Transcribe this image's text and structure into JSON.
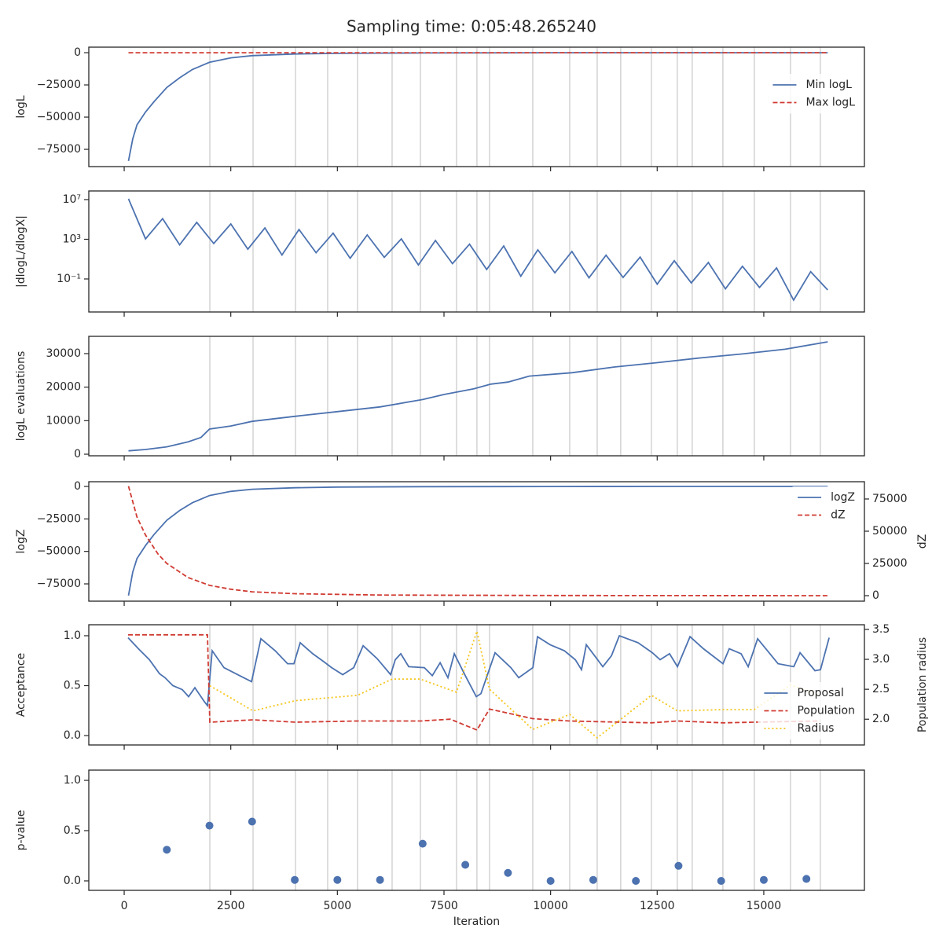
{
  "title": "Sampling time: 0:05:48.265240",
  "xaxis": {
    "xlim": [
      -830,
      17360
    ],
    "xticks": [
      0,
      2500,
      5000,
      7500,
      10000,
      12500,
      15000
    ],
    "label": "Iteration"
  },
  "vlines": [
    2009,
    3022,
    4017,
    4772,
    5473,
    6283,
    6947,
    7794,
    8273,
    8568,
    9582,
    10448,
    11093,
    11645,
    12364,
    12972,
    13322,
    14041,
    14778,
    15626,
    16326
  ],
  "chart_data": [
    {
      "type": "line",
      "ylabel": "logL",
      "ylim": [
        -88400,
        4300
      ],
      "yticks": [
        0,
        {
          "value": -25000,
          "label": "−25000"
        },
        {
          "value": -50000,
          "label": "−50000"
        },
        {
          "value": -75000,
          "label": "−75000"
        }
      ],
      "vlines": true,
      "legend": "center right",
      "series": [
        {
          "name": "Min logL",
          "color": "#4c72b0",
          "style": "solid",
          "x": [
            100,
            200,
            300,
            500,
            700,
            1000,
            1300,
            1600,
            2000,
            2500,
            3000,
            4000,
            5000,
            7000,
            10000,
            13000,
            16500
          ],
          "values": [
            -84000,
            -67000,
            -56000,
            -46000,
            -38000,
            -27000,
            -19500,
            -13000,
            -7500,
            -4000,
            -2300,
            -1000,
            -500,
            -200,
            -60,
            -20,
            -5
          ]
        },
        {
          "name": "Max logL",
          "color": "#d03b32",
          "style": "dashed",
          "x": [
            100,
            16500
          ],
          "values": [
            0,
            0
          ]
        }
      ]
    },
    {
      "type": "line",
      "ylabel": "|dlogL/dlogX|",
      "log_y": true,
      "ylim": [
        4.7e-05,
        74000000.0
      ],
      "yticks": [
        {
          "value": 10000000,
          "label": "10⁷"
        },
        {
          "value": 1000,
          "label": "10³"
        },
        {
          "value": 0.1,
          "label": "10⁻¹"
        }
      ],
      "vlines": true,
      "series": [
        {
          "color": "#4c72b0",
          "style": "solid",
          "x": [
            100,
            500,
            900,
            1300,
            1700,
            2100,
            2500,
            2900,
            3300,
            3700,
            4100,
            4500,
            4900,
            5300,
            5700,
            6100,
            6500,
            6900,
            7300,
            7700,
            8100,
            8500,
            8900,
            9300,
            9700,
            10100,
            10500,
            10900,
            11300,
            11700,
            12100,
            12500,
            12900,
            13300,
            13700,
            14100,
            14500,
            14900,
            15300,
            15700,
            16100,
            16500
          ],
          "values": [
            12000000.0,
            1100,
            120000,
            280,
            51000,
            370,
            35000,
            100,
            14000,
            26,
            9500,
            44,
            4100,
            12,
            2700,
            15,
            1100,
            2.6,
            760,
            3.5,
            320,
            0.9,
            210,
            0.19,
            87,
            0.41,
            59,
            0.13,
            25,
            0.14,
            16,
            0.03,
            6.9,
            0.04,
            4.6,
            0.01,
            1.9,
            0.014,
            1.3,
            0.00074,
            0.54,
            0.0078
          ]
        }
      ]
    },
    {
      "type": "line",
      "ylabel": "logL evaluations",
      "ylim": [
        -470,
        35150
      ],
      "yticks": [
        0,
        10000,
        20000,
        30000
      ],
      "vlines": true,
      "series": [
        {
          "color": "#4c72b0",
          "style": "solid",
          "x": [
            100,
            500,
            1000,
            1500,
            1800,
            2000,
            2500,
            3000,
            4000,
            5000,
            6000,
            7000,
            7500,
            8200,
            8600,
            9000,
            9500,
            10500,
            11500,
            12500,
            13500,
            14500,
            15500,
            16500
          ],
          "values": [
            1000,
            1400,
            2200,
            3700,
            5000,
            7500,
            8400,
            9800,
            11300,
            12700,
            14100,
            16300,
            17800,
            19500,
            20900,
            21500,
            23300,
            24300,
            26000,
            27300,
            28700,
            29900,
            31300,
            33500
          ]
        }
      ]
    },
    {
      "type": "line",
      "ylabel": "logZ",
      "y2label": "dZ",
      "ylim": [
        -88300,
        3630
      ],
      "yticks": [
        0,
        {
          "value": -25000,
          "label": "−25000"
        },
        {
          "value": -50000,
          "label": "−50000"
        },
        {
          "value": -75000,
          "label": "−75000"
        }
      ],
      "y2lim": [
        -4270,
        88400
      ],
      "y2ticks": [
        0,
        25000,
        50000,
        75000
      ],
      "vlines": false,
      "legend": "upper right",
      "series": [
        {
          "name": "logZ",
          "color": "#4c72b0",
          "style": "solid",
          "x": [
            100,
            200,
            300,
            500,
            700,
            1000,
            1300,
            1600,
            2000,
            2500,
            3000,
            4000,
            5000,
            7000,
            10000,
            13000,
            16500
          ],
          "values": [
            -84000,
            -66000,
            -55500,
            -45500,
            -37000,
            -26000,
            -18500,
            -12500,
            -7000,
            -3800,
            -2200,
            -1000,
            -500,
            -200,
            -60,
            -20,
            -5
          ]
        },
        {
          "name": "dZ",
          "color": "#d03b32",
          "style": "dashed",
          "axis": "y2",
          "x": [
            100,
            300,
            500,
            800,
            1000,
            1500,
            2000,
            2500,
            3000,
            4000,
            6000,
            10000,
            16500
          ],
          "values": [
            85000,
            61000,
            47000,
            32000,
            25000,
            14000,
            8000,
            5000,
            3000,
            1500,
            500,
            100,
            10
          ]
        }
      ]
    },
    {
      "type": "line",
      "ylabel": "Acceptance",
      "y2label": "Population radius",
      "ylim": [
        -0.094,
        1.11
      ],
      "yticks": [
        {
          "value": 0,
          "label": "0.0"
        },
        {
          "value": 0.5,
          "label": "0.5"
        },
        {
          "value": 1,
          "label": "1.0"
        }
      ],
      "y2lim": [
        1.57,
        3.578
      ],
      "y2ticks": [
        {
          "value": 2,
          "label": "2.0"
        },
        {
          "value": 2.5,
          "label": "2.5"
        },
        {
          "value": 3,
          "label": "3.0"
        },
        {
          "value": 3.5,
          "label": "3.5"
        }
      ],
      "vlines": true,
      "legend": "lower right",
      "series": [
        {
          "name": "Proposal",
          "color": "#4c72b0",
          "style": "solid",
          "x": [
            92,
            332,
            590,
            829,
            958,
            1142,
            1364,
            1511,
            1658,
            1879,
            1953,
            2064,
            2340,
            2709,
            2986,
            3207,
            3539,
            3833,
            3981,
            4128,
            4423,
            4681,
            4866,
            5124,
            5382,
            5603,
            5934,
            6248,
            6358,
            6487,
            6672,
            7040,
            7225,
            7409,
            7593,
            7741,
            7999,
            8257,
            8367,
            8699,
            9068,
            9252,
            9584,
            9694,
            9989,
            10321,
            10579,
            10726,
            10837,
            11224,
            11427,
            11611,
            12053,
            12385,
            12569,
            12790,
            12975,
            13270,
            13583,
            14043,
            14191,
            14468,
            14634,
            14855,
            15334,
            15703,
            15850,
            16200,
            16329,
            16532
          ],
          "values": [
            0.98,
            0.87,
            0.76,
            0.62,
            0.58,
            0.5,
            0.46,
            0.39,
            0.48,
            0.34,
            0.3,
            0.85,
            0.68,
            0.6,
            0.54,
            0.97,
            0.85,
            0.72,
            0.72,
            0.93,
            0.82,
            0.74,
            0.68,
            0.61,
            0.68,
            0.9,
            0.77,
            0.61,
            0.76,
            0.82,
            0.69,
            0.68,
            0.6,
            0.73,
            0.58,
            0.82,
            0.6,
            0.39,
            0.42,
            0.83,
            0.68,
            0.58,
            0.68,
            0.99,
            0.91,
            0.85,
            0.76,
            0.66,
            0.91,
            0.69,
            0.8,
            1.0,
            0.93,
            0.83,
            0.76,
            0.82,
            0.69,
            0.99,
            0.87,
            0.72,
            0.87,
            0.82,
            0.69,
            0.97,
            0.72,
            0.69,
            0.83,
            0.65,
            0.66,
            0.98
          ]
        },
        {
          "name": "Population",
          "color": "#d03b32",
          "style": "dashed",
          "axis": "y2",
          "x": [
            92,
            1953,
            2009,
            3022,
            4017,
            5473,
            6947,
            7650,
            8273,
            8568,
            9582,
            10448,
            11645,
            12364,
            12972,
            14041,
            14778,
            16326
          ],
          "values": [
            3.41,
            3.41,
            1.95,
            1.99,
            1.95,
            1.97,
            1.97,
            2.0,
            1.82,
            2.17,
            2.01,
            1.97,
            1.95,
            1.94,
            1.97,
            1.94,
            1.95,
            1.97
          ]
        },
        {
          "name": "Radius",
          "color": "#f5c518",
          "style": "dotted",
          "axis": "y2",
          "x": [
            2009,
            3022,
            4017,
            5473,
            6283,
            6947,
            7794,
            8273,
            8568,
            9582,
            10448,
            11093,
            12364,
            12972,
            14041,
            14778,
            15626,
            16326
          ],
          "values": [
            2.56,
            2.14,
            2.31,
            2.4,
            2.67,
            2.67,
            2.45,
            3.47,
            2.5,
            1.83,
            2.08,
            1.69,
            2.4,
            2.14,
            2.16,
            2.16,
            2.57,
            2.4
          ]
        }
      ]
    },
    {
      "type": "scatter",
      "ylabel": "p-value",
      "ylim": [
        -0.094,
        1.102
      ],
      "yticks": [
        {
          "value": 0,
          "label": "0.0"
        },
        {
          "value": 0.5,
          "label": "0.5"
        },
        {
          "value": 1,
          "label": "1.0"
        }
      ],
      "vlines": true,
      "color": "#4c72b0",
      "x": [
        1000,
        2000,
        3000,
        4000,
        5000,
        6000,
        7000,
        8000,
        9000,
        10000,
        11000,
        12000,
        13000,
        14000,
        15000,
        16000
      ],
      "values": [
        0.31,
        0.55,
        0.59,
        0.01,
        0.01,
        0.01,
        0.37,
        0.16,
        0.08,
        0,
        0.01,
        0,
        0.15,
        0,
        0.01,
        0.02
      ]
    }
  ]
}
